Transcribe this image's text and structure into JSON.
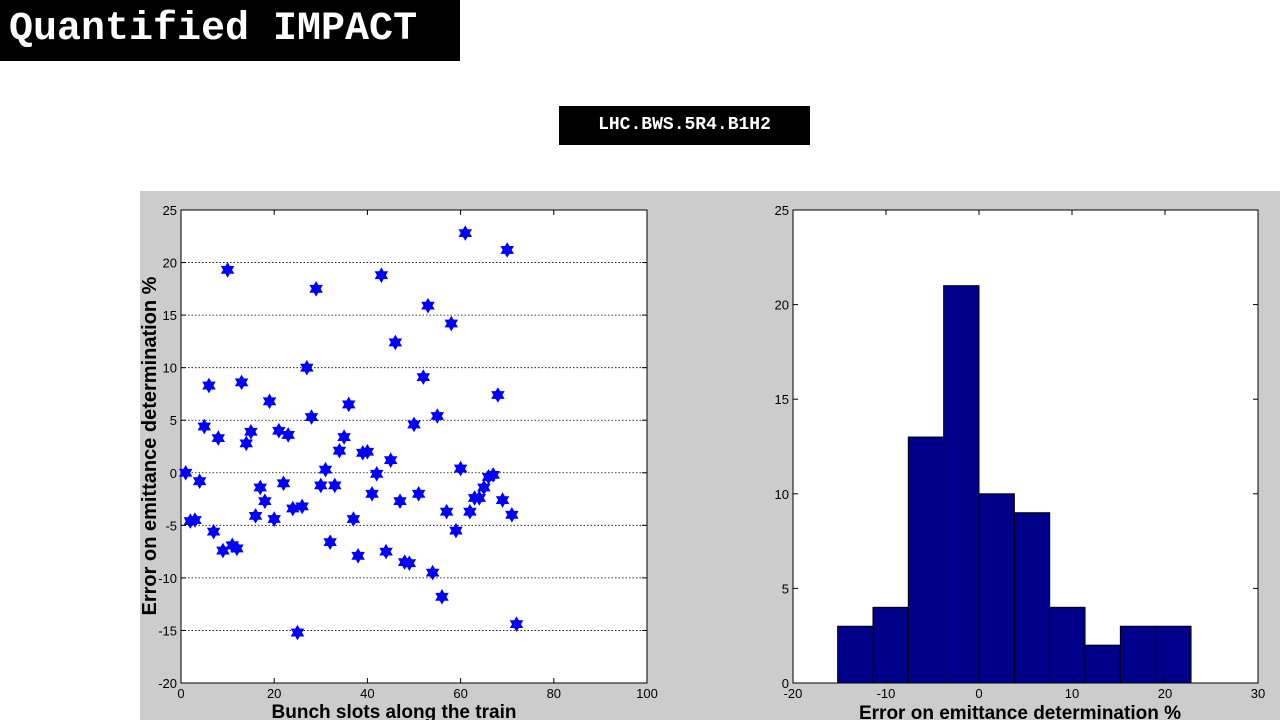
{
  "slide": {
    "title": "Quantified IMPACT",
    "device": "LHC.BWS.5R4.B1H2"
  },
  "colors": {
    "figure_bg": "#cccccc",
    "marker": "#0000ff",
    "bar_fill": "#00008b",
    "bar_edge": "#000000",
    "grid": "#000000"
  },
  "chart_data": [
    {
      "type": "scatter",
      "marker": "hexagram",
      "xlabel": "Bunch slots along the train",
      "ylabel": "Error on emittance determination %",
      "xlim": [
        0,
        100
      ],
      "ylim": [
        -20,
        25
      ],
      "xticks": [
        0,
        20,
        40,
        60,
        80,
        100
      ],
      "yticks": [
        -20,
        -15,
        -10,
        -5,
        0,
        5,
        10,
        15,
        20,
        25
      ],
      "grid": "horizontal dotted",
      "series": [
        {
          "x": [
            1,
            2,
            3,
            4,
            5,
            6,
            7,
            8,
            9,
            10,
            11,
            12,
            13,
            14,
            15,
            16,
            17,
            18,
            19,
            20,
            21,
            22,
            23,
            24,
            25,
            26,
            27,
            28,
            29,
            30,
            31,
            32,
            33,
            34,
            35,
            36,
            37,
            38,
            39,
            40,
            41,
            42,
            43,
            44,
            45,
            46,
            47,
            48,
            49,
            50,
            51,
            52,
            53,
            54,
            55,
            56,
            57,
            58,
            59,
            60,
            61,
            62,
            63,
            64,
            65,
            66,
            67,
            68,
            69,
            70,
            71,
            72
          ],
          "y": [
            0,
            -4.6,
            -4.5,
            -0.8,
            4.4,
            8.3,
            -5.6,
            3.3,
            -7.4,
            19.3,
            -6.9,
            -7.2,
            8.6,
            2.8,
            3.9,
            -4.1,
            -1.4,
            -2.7,
            6.8,
            -4.4,
            4.0,
            -1.0,
            3.6,
            -3.4,
            -15.2,
            -3.2,
            10.0,
            5.3,
            17.5,
            -1.2,
            0.3,
            -6.6,
            -1.2,
            2.1,
            3.4,
            6.5,
            -4.4,
            -7.9,
            1.9,
            2.0,
            -2.0,
            -0.1,
            18.8,
            -7.5,
            1.2,
            12.4,
            -2.7,
            -8.5,
            -8.6,
            4.6,
            -2.0,
            9.1,
            15.9,
            -9.5,
            5.4,
            -11.8,
            -3.7,
            14.2,
            -5.5,
            0.4,
            22.8,
            -3.7,
            -2.4,
            -2.4,
            -1.4,
            -0.4,
            -0.2,
            7.4,
            -2.6,
            21.2,
            -4.0,
            -14.4
          ]
        }
      ]
    },
    {
      "type": "bar",
      "subtype": "histogram",
      "xlabel": "Error on emittance determination %",
      "ylabel": "",
      "xlim": [
        -20,
        30
      ],
      "ylim": [
        0,
        25
      ],
      "xticks": [
        -20,
        -10,
        0,
        10,
        20,
        30
      ],
      "yticks": [
        0,
        5,
        10,
        15,
        20,
        25
      ],
      "bin_edges": [
        -15.2,
        -11.4,
        -7.6,
        -3.8,
        0,
        3.8,
        7.6,
        11.4,
        15.2,
        19.0,
        22.8
      ],
      "values": [
        3,
        4,
        13,
        21,
        10,
        9,
        4,
        2,
        3,
        3
      ]
    }
  ]
}
